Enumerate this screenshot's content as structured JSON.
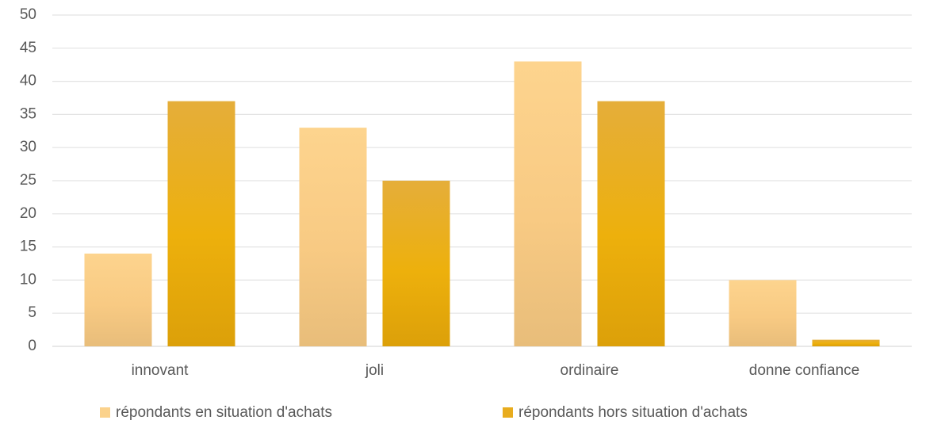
{
  "chart_data": {
    "type": "bar",
    "categories": [
      "innovant",
      "joli",
      "ordinaire",
      "donne confiance"
    ],
    "series": [
      {
        "name": "répondants  en situation d'achats",
        "values": [
          14,
          33,
          43,
          10
        ],
        "color": "#FBD28C"
      },
      {
        "name": "répondants  hors situation d'achats",
        "values": [
          37,
          25,
          37,
          1
        ],
        "color": "#E8AC1E"
      }
    ],
    "ylim": [
      0,
      50
    ],
    "yticks": [
      0,
      5,
      10,
      15,
      20,
      25,
      30,
      35,
      40,
      45,
      50
    ],
    "grid": true,
    "legend_position": "bottom"
  }
}
